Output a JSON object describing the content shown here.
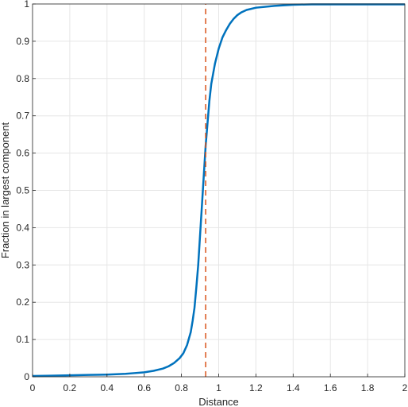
{
  "chart_data": {
    "type": "line",
    "xlabel": "Distance",
    "ylabel": "Fraction in largest component",
    "xlim": [
      0,
      2
    ],
    "ylim": [
      0,
      1
    ],
    "grid": true,
    "x_ticks": [
      0,
      0.2,
      0.4,
      0.6,
      0.8,
      1,
      1.2,
      1.4,
      1.6,
      1.8,
      2
    ],
    "x_tick_labels": [
      "0",
      "0.2",
      "0.4",
      "0.6",
      "0.8",
      "1",
      "1.2",
      "1.4",
      "1.6",
      "1.8",
      "2"
    ],
    "y_ticks": [
      0,
      0.1,
      0.2,
      0.3,
      0.4,
      0.5,
      0.6,
      0.7,
      0.8,
      0.9,
      1
    ],
    "y_tick_labels": [
      "0",
      "0.1",
      "0.2",
      "0.3",
      "0.4",
      "0.5",
      "0.6",
      "0.7",
      "0.8",
      "0.9",
      "1"
    ],
    "series": [
      {
        "color": "#0072BD",
        "style": "solid",
        "x": [
          0,
          0.1,
          0.2,
          0.3,
          0.4,
          0.5,
          0.55,
          0.6,
          0.65,
          0.7,
          0.73,
          0.76,
          0.79,
          0.81,
          0.83,
          0.85,
          0.86,
          0.87,
          0.88,
          0.89,
          0.9,
          0.91,
          0.92,
          0.93,
          0.94,
          0.95,
          0.96,
          0.98,
          1.0,
          1.02,
          1.04,
          1.06,
          1.08,
          1.1,
          1.12,
          1.15,
          1.2,
          1.3,
          1.4,
          1.5,
          1.6,
          1.8,
          2.0
        ],
        "y": [
          0.002,
          0.003,
          0.004,
          0.005,
          0.006,
          0.008,
          0.01,
          0.012,
          0.016,
          0.022,
          0.028,
          0.037,
          0.05,
          0.063,
          0.085,
          0.12,
          0.15,
          0.185,
          0.24,
          0.3,
          0.38,
          0.46,
          0.54,
          0.62,
          0.68,
          0.74,
          0.785,
          0.84,
          0.88,
          0.91,
          0.93,
          0.947,
          0.96,
          0.97,
          0.977,
          0.984,
          0.99,
          0.995,
          0.998,
          0.999,
          0.999,
          0.999,
          0.999
        ]
      },
      {
        "color": "#D95319",
        "style": "dashed",
        "x": [
          0.93,
          0.93
        ],
        "y": [
          0,
          1
        ]
      }
    ]
  }
}
